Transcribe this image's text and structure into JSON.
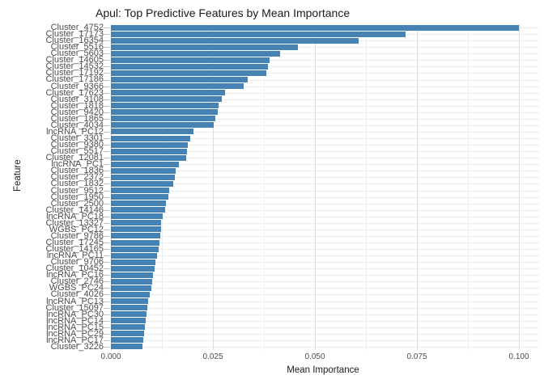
{
  "chart_data": {
    "type": "bar",
    "orientation": "horizontal",
    "title": "Apul: Top Predictive Features by Mean Importance",
    "xlabel": "Mean Importance",
    "ylabel": "Feature",
    "xlim": [
      0,
      0.105
    ],
    "x_ticks": [
      0,
      0.025,
      0.05,
      0.075,
      0.1
    ],
    "x_tick_labels": [
      "0.000",
      "0.025",
      "0.050",
      "0.075",
      "0.100"
    ],
    "x_minor_ticks": [
      0.0125,
      0.0375,
      0.0625,
      0.0875
    ],
    "grid": true,
    "legend": "none",
    "categories": [
      "Cluster_4752",
      "Cluster_17173",
      "Cluster_16354",
      "Cluster_5516",
      "Cluster_5603",
      "Cluster_14605",
      "Cluster_14532",
      "Cluster_17192",
      "Cluster_17186",
      "Cluster_9366",
      "Cluster_17623",
      "Cluster_3108",
      "Cluster_1818",
      "Cluster_9420",
      "Cluster_1865",
      "Cluster_4034",
      "lncRNA_PC12",
      "Cluster_3301",
      "Cluster_9380",
      "Cluster_5517",
      "Cluster_12081",
      "lncRNA_PC1",
      "Cluster_1836",
      "Cluster_2372",
      "Cluster_1832",
      "Cluster_9512",
      "Cluster_1950",
      "Cluster_2500",
      "Cluster_14146",
      "lncRNA_PC18",
      "Cluster_13327",
      "WGBS_PC12",
      "Cluster_9786",
      "Cluster_17245",
      "Cluster_14165",
      "lncRNA_PC11",
      "Cluster_9706",
      "Cluster_10452",
      "lncRNA_PC16",
      "Cluster_2746",
      "WGBS_PC24",
      "Cluster_4026",
      "lncRNA_PC13",
      "Cluster_15097",
      "lncRNA_PC30",
      "lncRNA_PC14",
      "lncRNA_PC15",
      "lncRNA_PC29",
      "lncRNA_PC17",
      "Cluster_3226"
    ],
    "values": [
      0.1,
      0.0722,
      0.0607,
      0.0458,
      0.0415,
      0.0389,
      0.0385,
      0.0381,
      0.0335,
      0.0325,
      0.0279,
      0.0272,
      0.0264,
      0.0261,
      0.0256,
      0.0251,
      0.0203,
      0.0194,
      0.0189,
      0.0186,
      0.0185,
      0.0167,
      0.0158,
      0.0157,
      0.0153,
      0.0143,
      0.014,
      0.0134,
      0.0132,
      0.0127,
      0.0124,
      0.0123,
      0.0122,
      0.012,
      0.0118,
      0.0114,
      0.0109,
      0.0107,
      0.0103,
      0.0101,
      0.0099,
      0.0095,
      0.0092,
      0.009,
      0.0087,
      0.0085,
      0.0083,
      0.0081,
      0.0079,
      0.0077
    ]
  },
  "colors": {
    "bar": "#4682B4",
    "grid_major": "#dedede",
    "grid_minor": "#efefef",
    "grid_row": "#ececec",
    "axis_text": "#4d4d4d",
    "title_text": "#1a1a1a",
    "background": "#ffffff"
  }
}
